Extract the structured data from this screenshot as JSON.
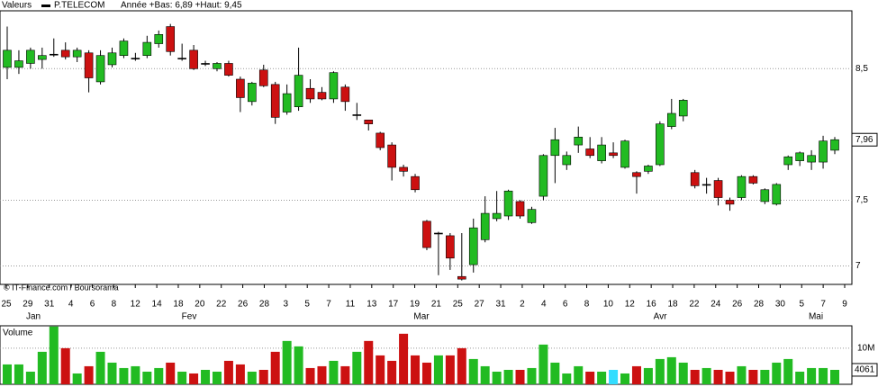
{
  "chart_data": {
    "type": "candlestick",
    "header_label": "Valeurs",
    "series_name": "P.TELECOM",
    "range_text": "Année +Bas: 6,89 +Haut: 9,45",
    "credit": "© IT-Finance.com / Boursorama",
    "up_color": "#22bb22",
    "down_color": "#cc1111",
    "open": [
      8.51,
      8.51,
      8.54,
      8.57,
      8.61,
      8.64,
      8.59,
      8.62,
      8.4,
      8.53,
      8.6,
      8.58,
      8.6,
      8.69,
      8.82,
      8.58,
      8.64,
      8.54,
      8.5,
      8.54,
      8.42,
      8.25,
      8.49,
      8.38,
      8.17,
      8.21,
      8.35,
      8.32,
      8.27,
      8.36,
      8.15,
      8.11,
      8.01,
      7.92,
      7.75,
      7.68,
      7.34,
      7.25,
      7.23,
      6.92,
      7.01,
      7.2,
      7.36,
      7.38,
      7.49,
      7.33,
      7.53,
      7.84,
      7.77,
      7.92,
      7.89,
      7.8,
      7.86,
      7.75,
      7.71,
      7.72,
      7.77,
      8.06,
      8.14,
      7.71,
      7.62,
      7.65,
      7.5,
      7.52,
      7.68,
      7.49,
      7.47,
      7.77,
      7.8,
      7.79,
      7.79,
      7.88
    ],
    "high": [
      8.82,
      8.64,
      8.66,
      8.66,
      8.73,
      8.7,
      8.66,
      8.64,
      8.64,
      8.66,
      8.73,
      8.62,
      8.75,
      8.79,
      8.84,
      8.69,
      8.68,
      8.56,
      8.55,
      8.56,
      8.44,
      8.4,
      8.53,
      8.4,
      8.38,
      8.66,
      8.42,
      8.36,
      8.48,
      8.38,
      8.24,
      8.11,
      8.02,
      7.94,
      7.77,
      7.7,
      7.35,
      7.26,
      7.25,
      7.25,
      7.36,
      7.53,
      7.57,
      7.58,
      7.5,
      7.45,
      7.85,
      8.05,
      7.87,
      8.06,
      7.98,
      7.98,
      7.94,
      7.96,
      7.72,
      7.77,
      8.1,
      8.27,
      8.27,
      7.73,
      7.67,
      7.67,
      7.52,
      7.69,
      7.69,
      7.59,
      7.63,
      7.84,
      7.87,
      7.88,
      7.99,
      7.98
    ],
    "low": [
      8.42,
      8.46,
      8.5,
      8.5,
      8.59,
      8.57,
      8.55,
      8.32,
      8.38,
      8.51,
      8.58,
      8.56,
      8.58,
      8.66,
      8.6,
      8.56,
      8.49,
      8.52,
      8.48,
      8.44,
      8.17,
      8.22,
      8.36,
      8.08,
      8.15,
      8.18,
      8.24,
      8.26,
      8.24,
      8.18,
      8.11,
      8.03,
      7.88,
      7.65,
      7.68,
      7.56,
      7.12,
      6.93,
      6.97,
      6.89,
      6.95,
      7.18,
      7.34,
      7.35,
      7.36,
      7.32,
      7.5,
      7.63,
      7.73,
      7.86,
      7.82,
      7.78,
      7.82,
      7.74,
      7.55,
      7.7,
      7.76,
      8.04,
      8.1,
      7.59,
      7.55,
      7.46,
      7.42,
      7.5,
      7.62,
      7.47,
      7.46,
      7.73,
      7.76,
      7.73,
      7.74,
      7.85
    ],
    "close": [
      8.64,
      8.56,
      8.64,
      8.6,
      8.61,
      8.59,
      8.64,
      8.43,
      8.6,
      8.62,
      8.71,
      8.58,
      8.7,
      8.76,
      8.63,
      8.58,
      8.5,
      8.54,
      8.54,
      8.45,
      8.28,
      8.39,
      8.37,
      8.13,
      8.31,
      8.45,
      8.27,
      8.27,
      8.47,
      8.25,
      8.15,
      8.08,
      7.9,
      7.75,
      7.72,
      7.58,
      7.14,
      7.25,
      7.06,
      6.9,
      7.29,
      7.4,
      7.4,
      7.57,
      7.38,
      7.43,
      7.84,
      7.96,
      7.84,
      7.98,
      7.84,
      7.92,
      7.84,
      7.95,
      7.68,
      7.76,
      8.08,
      8.16,
      8.26,
      7.61,
      7.62,
      7.52,
      7.47,
      7.68,
      7.63,
      7.58,
      7.62,
      7.83,
      7.86,
      7.84,
      7.95,
      7.96
    ],
    "ylim": [
      6.86,
      8.94
    ],
    "yticks": [
      7,
      {
        "value": 7.5,
        "label": "7,5"
      },
      {
        "value": 8.5,
        "label": "8,5"
      }
    ],
    "last_price": {
      "value": 7.96,
      "label": "7,96"
    },
    "x_labels": [
      "25",
      "29",
      "31",
      "4",
      "6",
      "8",
      "12",
      "14",
      "18",
      "20",
      "22",
      "26",
      "28",
      "3",
      "5",
      "7",
      "11",
      "13",
      "17",
      "19",
      "21",
      "25",
      "27",
      "31",
      "2",
      "4",
      "6",
      "8",
      "10",
      "12",
      "16",
      "18",
      "22",
      "24",
      "26",
      "28",
      "30",
      "5",
      "7",
      "9"
    ],
    "months": [
      "Jan",
      "Fev",
      "Mar",
      "Avr",
      "Mai"
    ],
    "volume": {
      "label": "Volume",
      "values": [
        5.5,
        5.5,
        3.5,
        9,
        16,
        10,
        3,
        5,
        9,
        6,
        4.5,
        5,
        3.5,
        4.5,
        6,
        3.5,
        3,
        4,
        3.5,
        6.5,
        5.5,
        3.5,
        4,
        9,
        12,
        10.5,
        4.5,
        5,
        6.5,
        5,
        9,
        12,
        8,
        6.5,
        14,
        8,
        6,
        8,
        8,
        10,
        7,
        5,
        3.5,
        4,
        4,
        4.5,
        11,
        6,
        3,
        5,
        3.5,
        3.5,
        4,
        3,
        5,
        4.5,
        7,
        7.5,
        6,
        4,
        4.5,
        4,
        3.5,
        5,
        4,
        4,
        6,
        7,
        3.5,
        4.5,
        4.5,
        4
      ],
      "ylim": [
        0,
        16.2
      ],
      "yticks": [
        {
          "value": 10,
          "label": "10M"
        }
      ],
      "last_label": "4061",
      "highlight_color": "#33ddff"
    }
  }
}
